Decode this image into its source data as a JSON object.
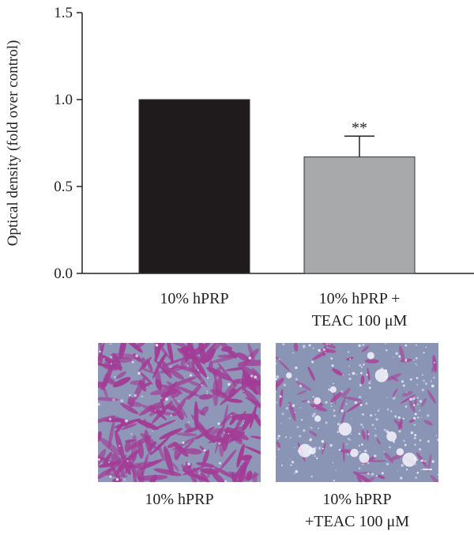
{
  "chart_data": {
    "type": "bar",
    "categories": [
      "10% hPRP",
      "10% hPRP +\nTEAC 100 μM"
    ],
    "values": [
      1.0,
      0.67
    ],
    "errors": [
      0.0,
      0.12
    ],
    "significance": [
      "",
      "**"
    ],
    "bar_colors": [
      "#1f1a1b",
      "#a7a9ab"
    ],
    "ylabel": "Optical density (fold over control)",
    "ylim": [
      0,
      1.5
    ],
    "yticks": [
      "0.0",
      "0.5",
      "1.0",
      "1.5"
    ],
    "grid": false
  },
  "micrographs": [
    {
      "caption": "10% hPRP",
      "stain": "dense",
      "colors": {
        "bg": "#8f97b8",
        "cell": "#a33c96"
      }
    },
    {
      "caption": "10% hPRP\n+TEAC 100 μM",
      "stain": "sparse",
      "colors": {
        "bg": "#8a95b6",
        "cell": "#a8479b"
      }
    }
  ]
}
